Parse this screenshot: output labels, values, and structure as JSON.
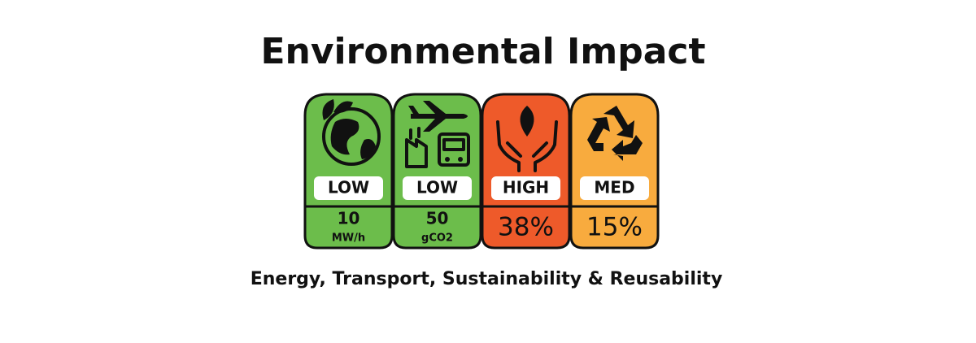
{
  "title": "Environmental Impact",
  "panels": [
    {
      "rating": "LOW",
      "value": 10,
      "unit": "MW/h",
      "color": "#6cbd4b"
    },
    {
      "rating": "LOW",
      "value": 50,
      "unit": "gCO2",
      "color": "#6cbd4b"
    },
    {
      "rating": "HIGH",
      "value": "38%",
      "color": "#ee5a2a"
    },
    {
      "rating": "MED",
      "value": "15%",
      "color": "#f8ab3e"
    }
  ],
  "subtitle": "Energy, Transport, Sustainability & Reusability"
}
